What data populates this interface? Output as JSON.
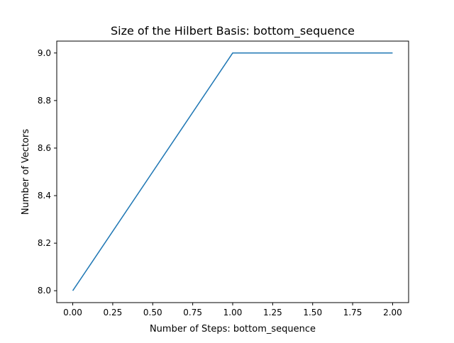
{
  "chart_data": {
    "type": "line",
    "title": "Size of the Hilbert Basis: bottom_sequence",
    "xlabel": "Number of Steps: bottom_sequence",
    "ylabel": "Number of Vectors",
    "xlim": [
      -0.1,
      2.1
    ],
    "ylim": [
      7.95,
      9.05
    ],
    "xticks": [
      0.0,
      0.25,
      0.5,
      0.75,
      1.0,
      1.25,
      1.5,
      1.75,
      2.0
    ],
    "xtick_labels": [
      "0.00",
      "0.25",
      "0.50",
      "0.75",
      "1.00",
      "1.25",
      "1.50",
      "1.75",
      "2.00"
    ],
    "yticks": [
      8.0,
      8.2,
      8.4,
      8.6,
      8.8,
      9.0
    ],
    "ytick_labels": [
      "8.0",
      "8.2",
      "8.4",
      "8.6",
      "8.8",
      "9.0"
    ],
    "grid": false,
    "legend": "none",
    "series": [
      {
        "x": [
          0,
          1,
          2
        ],
        "y": [
          8,
          9,
          9
        ],
        "color": "#1f77b4"
      }
    ]
  }
}
